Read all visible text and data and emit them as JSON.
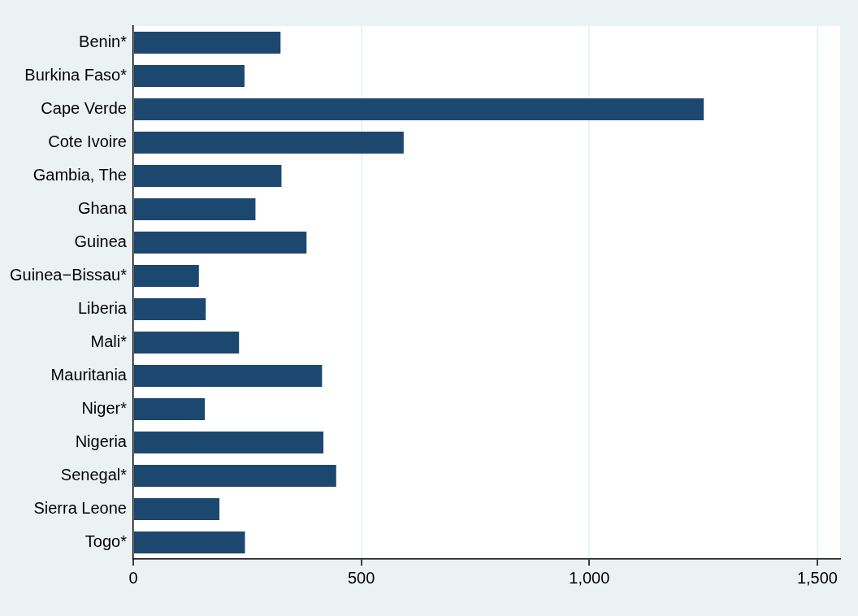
{
  "chart_data": {
    "type": "bar",
    "orientation": "horizontal",
    "categories": [
      "Benin*",
      "Burkina Faso*",
      "Cape Verde",
      "Cote Ivoire",
      "Gambia, The",
      "Ghana",
      "Guinea",
      "Guinea−Bissau*",
      "Liberia",
      "Mali*",
      "Mauritania",
      "Niger*",
      "Nigeria",
      "Senegal*",
      "Sierra Leone",
      "Togo*"
    ],
    "values": [
      323,
      244,
      1251,
      593,
      325,
      268,
      380,
      144,
      159,
      232,
      414,
      157,
      417,
      445,
      189,
      245
    ],
    "color": "#1c4870",
    "xlim": [
      0,
      1550
    ],
    "xticks": [
      0,
      500,
      {
        "value": 1000,
        "label": "1,000"
      },
      {
        "value": 1500,
        "label": "1,500"
      }
    ],
    "grid": "x",
    "legend": false
  }
}
